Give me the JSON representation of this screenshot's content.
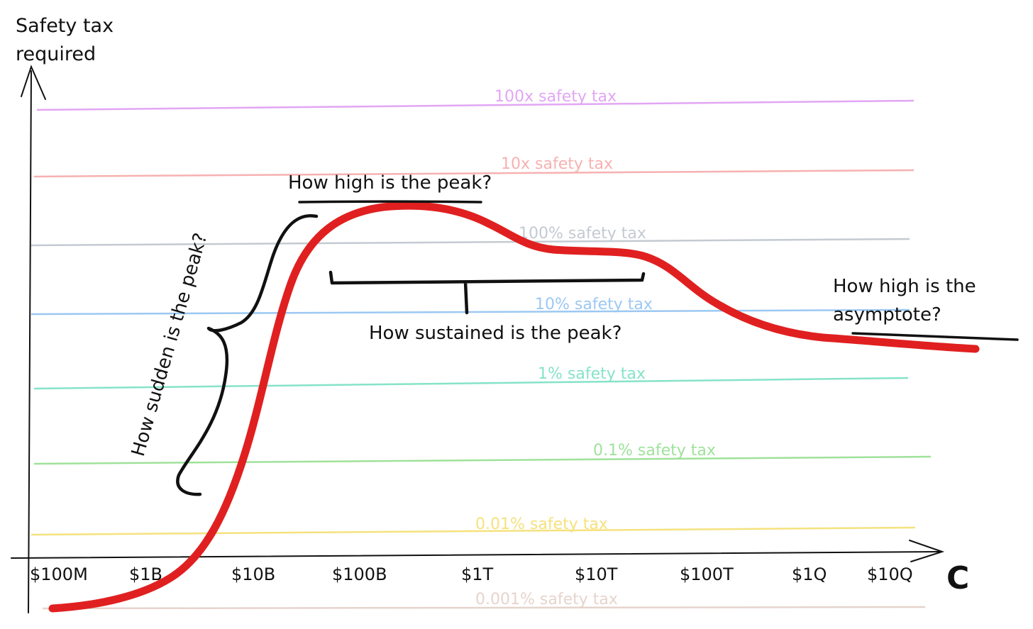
{
  "chart_data": {
    "type": "line",
    "y_axis_title_line1": "Safety tax",
    "y_axis_title_line2": "required",
    "x_axis_label": "C",
    "x_ticks": [
      "$100M",
      "$1B",
      "$10B",
      "$100B",
      "$1T",
      "$10T",
      "$100T",
      "$1Q",
      "$10Q"
    ],
    "reference_lines": [
      {
        "label": "100x safety tax",
        "color": "#e2a6f4"
      },
      {
        "label": "10x safety tax",
        "color": "#f7b1b1"
      },
      {
        "label": "100% safety tax",
        "color": "#c4cad2"
      },
      {
        "label": "10% safety tax",
        "color": "#9cc8f2"
      },
      {
        "label": "1% safety tax",
        "color": "#86e3c8"
      },
      {
        "label": "0.1% safety tax",
        "color": "#9fe29a"
      },
      {
        "label": "0.01% safety tax",
        "color": "#f5e27e"
      },
      {
        "label": "0.001% safety tax",
        "color": "#e5d4cc"
      }
    ],
    "curve_color": "#e02020",
    "annotations": {
      "peak_height": "How high is the peak?",
      "peak_suddenness": "How sudden is the peak?",
      "peak_sustained": "How sustained is the peak?",
      "asymptote_line1": "How high is the",
      "asymptote_line2": "asymptote?"
    }
  }
}
